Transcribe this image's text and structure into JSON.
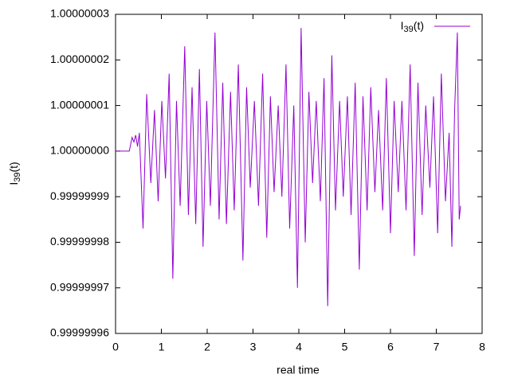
{
  "chart_data": {
    "type": "line",
    "xlabel": "real time",
    "ylabel": "I39(t)",
    "x": [
      0,
      0.3,
      0.36,
      0.4,
      0.44,
      0.48,
      0.52,
      0.6,
      0.68,
      0.77,
      0.85,
      0.93,
      1.01,
      1.09,
      1.17,
      1.25,
      1.33,
      1.41,
      1.51,
      1.59,
      1.67,
      1.75,
      1.83,
      1.91,
      1.99,
      2.07,
      2.17,
      2.26,
      2.34,
      2.42,
      2.51,
      2.59,
      2.68,
      2.78,
      2.86,
      2.94,
      3.03,
      3.12,
      3.21,
      3.3,
      3.38,
      3.46,
      3.55,
      3.63,
      3.72,
      3.8,
      3.89,
      3.97,
      4.05,
      4.14,
      4.22,
      4.3,
      4.38,
      4.47,
      4.55,
      4.63,
      4.72,
      4.8,
      4.89,
      4.97,
      5.06,
      5.14,
      5.23,
      5.32,
      5.4,
      5.49,
      5.57,
      5.66,
      5.74,
      5.83,
      5.91,
      6.0,
      6.08,
      6.17,
      6.25,
      6.34,
      6.43,
      6.52,
      6.6,
      6.69,
      6.77,
      6.86,
      6.94,
      7.03,
      7.11,
      7.2,
      7.28,
      7.34,
      7.4,
      7.46,
      7.5,
      7.53
    ],
    "series": [
      {
        "name": "I39(t)",
        "color": "#9400d3",
        "values": [
          1,
          1,
          1.000000003,
          1.000000002,
          1.0000000035,
          1.000000001,
          1.000000004,
          0.999999983,
          1.0000000125,
          0.999999993,
          1.000000009,
          0.999999989,
          1.000000011,
          0.999999994,
          1.000000017,
          0.999999972,
          1.000000011,
          0.999999988,
          1.000000023,
          0.999999986,
          1.000000014,
          0.999999984,
          1.000000018,
          0.999999979,
          1.000000011,
          0.999999988,
          1.000000026,
          0.999999985,
          1.000000015,
          0.999999984,
          1.000000013,
          0.999999987,
          1.000000019,
          0.999999976,
          1.000000014,
          0.999999992,
          1.000000011,
          0.999999988,
          1.000000017,
          0.999999981,
          1.000000012,
          0.999999991,
          1.00000001,
          0.99999999,
          1.000000019,
          0.999999983,
          1.00000001,
          0.99999997,
          1.000000027,
          0.99999998,
          1.000000013,
          0.999999993,
          1.000000011,
          0.999999989,
          1.000000016,
          0.999999966,
          1.000000021,
          0.999999987,
          1.000000011,
          0.99999999,
          1.000000012,
          0.999999986,
          1.000000015,
          0.999999974,
          1.000000012,
          0.999999987,
          1.000000014,
          0.999999991,
          1.000000009,
          0.999999987,
          1.000000016,
          0.999999982,
          1.000000011,
          0.999999991,
          1.000000011,
          0.999999987,
          1.000000019,
          0.999999977,
          1.000000015,
          0.999999986,
          1.00000001,
          0.999999992,
          1.000000012,
          0.999999982,
          1.000000017,
          0.999999989,
          1.000000004,
          0.999999979,
          1.000000009,
          1.000000026,
          0.999999985,
          0.999999988
        ]
      }
    ],
    "xlim": [
      0,
      8
    ],
    "xticks": [
      0,
      1,
      2,
      3,
      4,
      5,
      6,
      7,
      8
    ],
    "ylim": [
      0.99999996,
      1.00000003
    ],
    "yticks": [
      {
        "value": 0.99999996,
        "label": "0.99999996"
      },
      {
        "value": 0.99999997,
        "label": "0.99999997"
      },
      {
        "value": 0.99999998,
        "label": "0.99999998"
      },
      {
        "value": 0.99999999,
        "label": "0.99999999"
      },
      {
        "value": 1,
        "label": "1.00000000"
      },
      {
        "value": 1.00000001,
        "label": "1.00000001"
      },
      {
        "value": 1.00000002,
        "label": "1.00000002"
      },
      {
        "value": 1.00000003,
        "label": "1.00000003"
      }
    ],
    "legend": "top-right",
    "grid": false
  }
}
